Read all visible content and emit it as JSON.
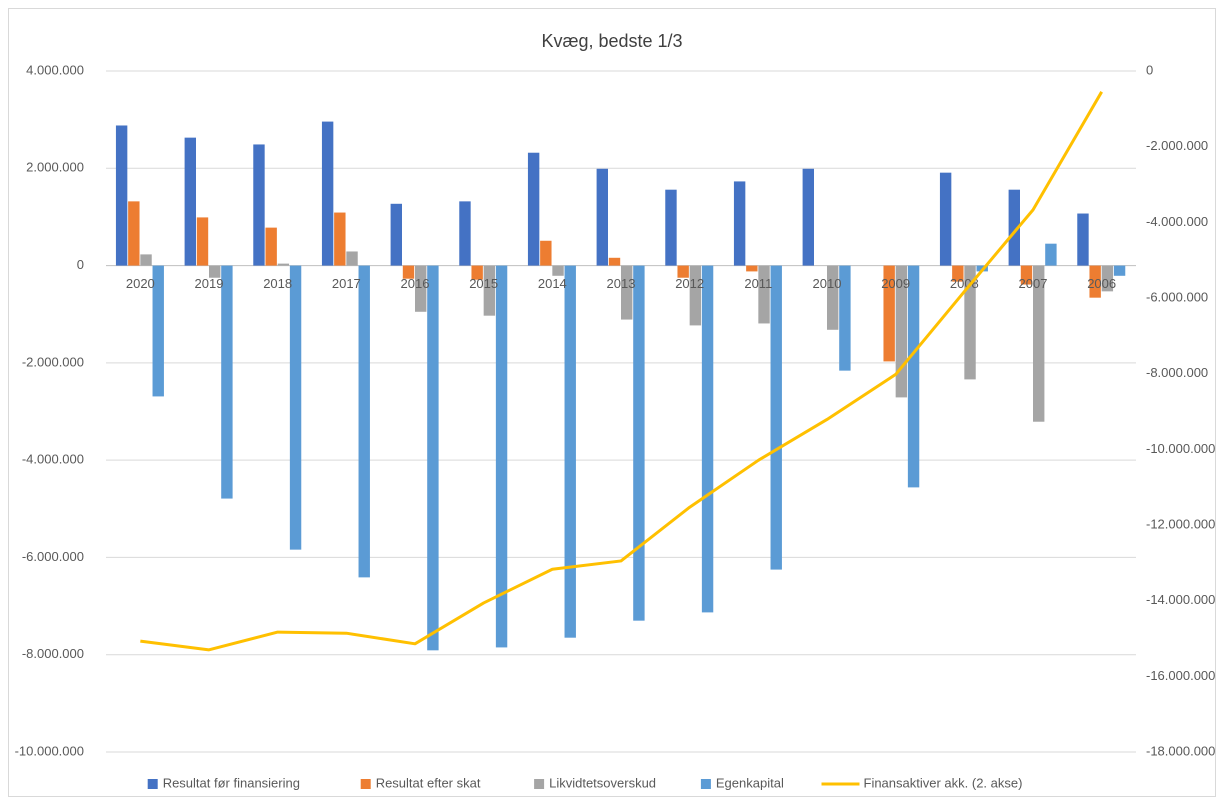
{
  "chart_data": {
    "type": "bar",
    "title": "Kvæg, bedste 1/3",
    "categories": [
      "2020",
      "2019",
      "2018",
      "2017",
      "2016",
      "2015",
      "2014",
      "2013",
      "2012",
      "2011",
      "2010",
      "2009",
      "2008",
      "2007",
      "2006"
    ],
    "series": [
      {
        "name": "Resultat før finansiering",
        "color": "#4472c4",
        "values": [
          2880000,
          2630000,
          2490000,
          2960000,
          1270000,
          1320000,
          2320000,
          1990000,
          1560000,
          1730000,
          1990000,
          0,
          1910000,
          1560000,
          1070000
        ]
      },
      {
        "name": "Resultat efter skat",
        "color": "#ed7d31",
        "values": [
          1320000,
          990000,
          780000,
          1090000,
          -270000,
          -290000,
          510000,
          160000,
          -250000,
          -120000,
          0,
          -1970000,
          -330000,
          -390000,
          -660000
        ]
      },
      {
        "name": "Likvidtetsoverskud",
        "color": "#a5a5a5",
        "values": [
          230000,
          -250000,
          40000,
          290000,
          -950000,
          -1030000,
          -210000,
          -1110000,
          -1230000,
          -1190000,
          -1320000,
          -2710000,
          -2340000,
          -3210000,
          -530000
        ]
      },
      {
        "name": "Egenkapital",
        "color": "#5b9bd5",
        "values": [
          -2690000,
          -4790000,
          -5840000,
          -6410000,
          -7910000,
          -7850000,
          -7650000,
          -7300000,
          -7130000,
          -6250000,
          -2160000,
          -4560000,
          -120000,
          450000,
          -210000
        ]
      },
      {
        "name": "Finansaktiver akk. (2. akse)",
        "color": "#ffc000",
        "type": "line",
        "axis": "y2",
        "values": [
          -15070000,
          -15300000,
          -14830000,
          -14860000,
          -15140000,
          -14060000,
          -13170000,
          -12950000,
          -11530000,
          -10290000,
          -9210000,
          -8020000,
          -5830000,
          -3670000,
          -550000
        ]
      }
    ],
    "ylim": [
      -10000000,
      4000000
    ],
    "yticks": [
      {
        "value": 4000000,
        "label": "4.000.000"
      },
      {
        "value": 2000000,
        "label": "2.000.000"
      },
      {
        "value": 0,
        "label": "0"
      },
      {
        "value": -2000000,
        "label": "-2.000.000"
      },
      {
        "value": -4000000,
        "label": "-4.000.000"
      },
      {
        "value": -6000000,
        "label": "-6.000.000"
      },
      {
        "value": -8000000,
        "label": "-8.000.000"
      },
      {
        "value": -10000000,
        "label": "-10.000.000"
      }
    ],
    "y2lim": [
      -18000000,
      0
    ],
    "y2ticks": [
      0,
      {
        "value": -2000000,
        "label": "-2.000.000"
      },
      {
        "value": -4000000,
        "label": "-4.000.000"
      },
      {
        "value": -6000000,
        "label": "-6.000.000"
      },
      {
        "value": -8000000,
        "label": "-8.000.000"
      },
      {
        "value": -10000000,
        "label": "-10.000.000"
      },
      {
        "value": -12000000,
        "label": "-12.000.000"
      },
      {
        "value": -14000000,
        "label": "-14.000.000"
      },
      {
        "value": -16000000,
        "label": "-16.000.000"
      },
      {
        "value": -18000000,
        "label": "-18.000.000"
      }
    ],
    "grid": true,
    "legend": "bottom"
  }
}
